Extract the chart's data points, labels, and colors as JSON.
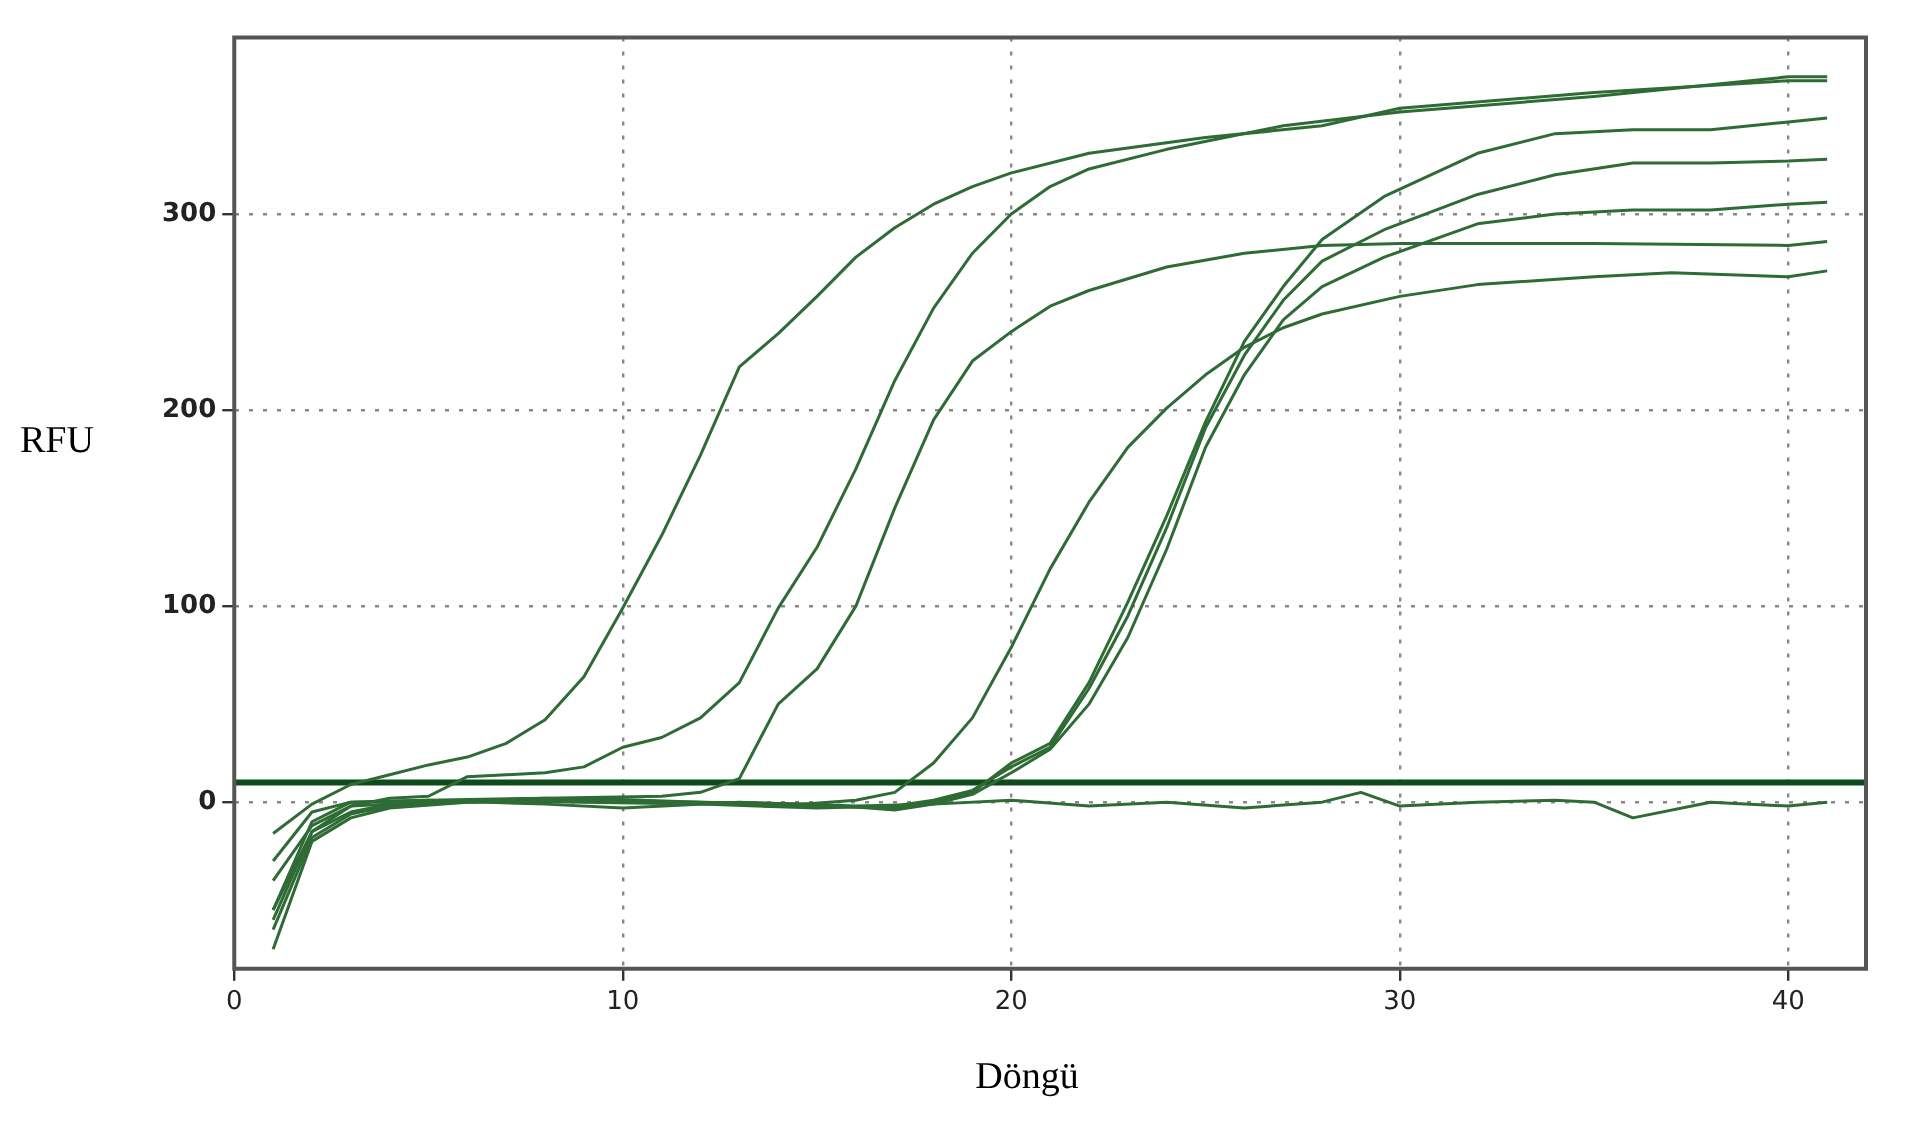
{
  "chart_data": {
    "type": "line",
    "xlabel": "Döngü",
    "ylabel": "RFU",
    "xlim": [
      0,
      42
    ],
    "ylim": [
      -85,
      390
    ],
    "xticks": [
      0,
      10,
      20,
      30,
      40
    ],
    "yticks": [
      0,
      100,
      200,
      300
    ],
    "grid": true,
    "legend": false,
    "marker": "none",
    "line_style": "solid",
    "ref_lines": [
      {
        "axis": "y",
        "value": 10,
        "color": "#0f4a1a"
      }
    ],
    "series": [
      {
        "color": "#2e6b35",
        "x": [
          1,
          2,
          3,
          4,
          5,
          6,
          7,
          8,
          9,
          10,
          11,
          12,
          13,
          14,
          15,
          16,
          17,
          18,
          19,
          20,
          22,
          25,
          28,
          30,
          35,
          40,
          41
        ],
        "values": [
          -16,
          -1,
          9,
          14,
          19,
          23,
          30,
          42,
          64,
          99,
          136,
          177,
          222,
          239,
          258,
          278,
          293,
          305,
          314,
          321,
          331,
          339,
          345,
          354,
          362,
          368,
          368
        ]
      },
      {
        "color": "#2e6b35",
        "x": [
          1,
          2,
          3,
          4,
          5,
          6,
          7,
          8,
          9,
          10,
          11,
          12,
          13,
          14,
          15,
          16,
          17,
          18,
          19,
          20,
          21,
          22,
          24,
          27,
          30,
          35,
          40,
          41
        ],
        "values": [
          -60,
          -15,
          -2,
          2,
          3,
          13,
          14,
          15,
          18,
          28,
          33,
          43,
          61,
          99,
          130,
          170,
          215,
          252,
          280,
          300,
          314,
          323,
          333,
          345,
          352,
          360,
          370,
          370
        ]
      },
      {
        "color": "#2e6b35",
        "x": [
          1,
          2,
          3,
          5,
          8,
          11,
          12,
          13,
          14,
          15,
          16,
          17,
          18,
          19,
          20,
          21,
          22,
          24,
          26,
          28,
          30,
          35,
          40,
          41
        ],
        "values": [
          -55,
          -10,
          0,
          1,
          2,
          3,
          5,
          12,
          50,
          68,
          100,
          150,
          195,
          225,
          240,
          253,
          261,
          273,
          280,
          284,
          285,
          285,
          284,
          286
        ]
      },
      {
        "color": "#2e6b35",
        "x": [
          1,
          2,
          3,
          5,
          8,
          11,
          14,
          16,
          17,
          18,
          19,
          20,
          21,
          22,
          23,
          24,
          25,
          26,
          27,
          28,
          30,
          32,
          35,
          37,
          40,
          41
        ],
        "values": [
          -40,
          -12,
          -2,
          0,
          2,
          0,
          -2,
          1,
          5,
          20,
          43,
          79,
          119,
          153,
          181,
          201,
          218,
          232,
          242,
          249,
          258,
          264,
          268,
          270,
          268,
          271
        ]
      },
      {
        "color": "#2e6b35",
        "x": [
          1,
          2,
          3,
          4,
          6,
          9,
          12,
          15,
          17,
          18,
          19,
          20,
          21,
          22,
          23,
          24,
          25,
          26,
          27,
          28,
          29.6,
          32,
          34,
          36,
          38,
          40,
          41
        ],
        "values": [
          -75,
          -20,
          -8,
          -3,
          0,
          1,
          0,
          -2,
          -3,
          0,
          5,
          20,
          30,
          61,
          102,
          146,
          194,
          235,
          263,
          287,
          309,
          331,
          341,
          343,
          343,
          347,
          349
        ]
      },
      {
        "color": "#2e6b35",
        "x": [
          1,
          2,
          3,
          4,
          6,
          9,
          12,
          15,
          17,
          18,
          19,
          20,
          21,
          22,
          23,
          24,
          25,
          26,
          27,
          28,
          29.6,
          32,
          34,
          36,
          38,
          40,
          41
        ],
        "values": [
          -65,
          -18,
          -6,
          -2,
          1,
          0,
          -1,
          -3,
          -2,
          1,
          6,
          18,
          28,
          58,
          95,
          140,
          191,
          228,
          256,
          276,
          292,
          310,
          320,
          326,
          326,
          327,
          328
        ]
      },
      {
        "color": "#2e6b35",
        "x": [
          1,
          2,
          3,
          4,
          6,
          9,
          12,
          15,
          17,
          18,
          19,
          20,
          21,
          22,
          23,
          24,
          25,
          26,
          27,
          28,
          29.6,
          32,
          34,
          36,
          38,
          40,
          41
        ],
        "values": [
          -55,
          -15,
          -5,
          -1,
          0,
          2,
          0,
          -1,
          -4,
          -1,
          4,
          15,
          27,
          50,
          84,
          129,
          181,
          218,
          246,
          263,
          278,
          295,
          300,
          302,
          302,
          305,
          306
        ]
      },
      {
        "color": "#2e6b35",
        "x": [
          1,
          2,
          3,
          5,
          8,
          10,
          13,
          16,
          18,
          20,
          22,
          24,
          26,
          28,
          29,
          30,
          32,
          34,
          35,
          36,
          38,
          40,
          41
        ],
        "values": [
          -30,
          -5,
          0,
          1,
          -1,
          -3,
          0,
          -2,
          -1,
          1,
          -2,
          0,
          -3,
          0,
          5,
          -2,
          0,
          1,
          0,
          -8,
          0,
          -2,
          0
        ]
      }
    ]
  }
}
